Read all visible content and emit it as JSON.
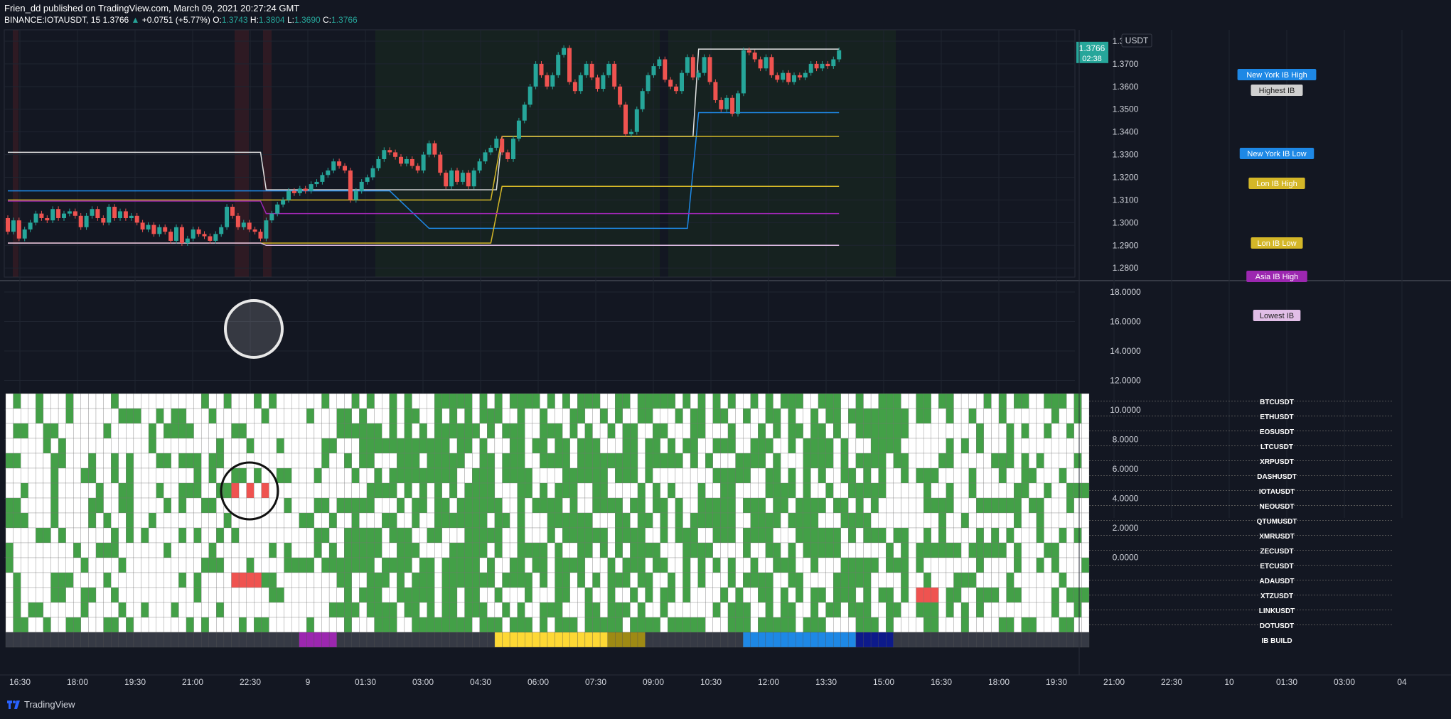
{
  "header": {
    "publisher": "Frien_dd published on TradingView.com, March 09, 2021 20:27:24 GMT",
    "symbol": "BINANCE:IOTAUSDT, 15",
    "last": "1.3766",
    "change_arrow": "▲",
    "change": "+0.0751 (+5.77%)",
    "o_label": "O:",
    "o": "1.3743",
    "h_label": "H:",
    "h": "1.3804",
    "l_label": "L:",
    "l": "1.3690",
    "c_label": "C:",
    "c": "1.3766"
  },
  "currency_label": "USDT",
  "price_axis": [
    "1.3800",
    "1.3700",
    "1.3600",
    "1.3500",
    "1.3400",
    "1.3300",
    "1.3200",
    "1.3100",
    "1.3000",
    "1.2900",
    "1.2800"
  ],
  "current_price": {
    "value": "1.3766",
    "countdown": "02:38"
  },
  "line_labels": [
    {
      "text": "New York IB High",
      "color": "#1e88e5"
    },
    {
      "text": "Highest IB",
      "color": "#d0d0d0"
    },
    {
      "text": "New York IB Low",
      "color": "#1e88e5"
    },
    {
      "text": "Lon IB High",
      "color": "#d4b728"
    },
    {
      "text": "Lon IB Low",
      "color": "#d4b728"
    },
    {
      "text": "Asia IB High",
      "color": "#9c27b0"
    },
    {
      "text": "Lowest IB",
      "color": "#e1bee7"
    }
  ],
  "indicator_axis": [
    "18.0000",
    "16.0000",
    "14.0000",
    "12.0000",
    "10.0000",
    "8.0000",
    "6.0000",
    "4.0000",
    "2.0000",
    "0.0000"
  ],
  "symbols": [
    "BTCUSDT",
    "ETHUSDT",
    "EOSUSDT",
    "LTCUSDT",
    "XRPUSDT",
    "DASHUSDT",
    "IOTAUSDT",
    "NEOUSDT",
    "QTUMUSDT",
    "XMRUSDT",
    "ZECUSDT",
    "ETCUSDT",
    "ADAUSDT",
    "XTZUSDT",
    "LINKUSDT",
    "DOTUSDT",
    "IB BUILD"
  ],
  "time_axis": [
    "16:30",
    "18:00",
    "19:30",
    "21:00",
    "22:30",
    "9",
    "01:30",
    "03:00",
    "04:30",
    "06:00",
    "07:30",
    "09:00",
    "10:30",
    "12:00",
    "13:30",
    "15:00",
    "16:30",
    "18:00",
    "19:30",
    "21:00",
    "22:30",
    "10",
    "01:30",
    "03:00",
    "04"
  ],
  "footer": {
    "brand": "TradingView"
  },
  "colors": {
    "background": "#131722",
    "up": "#26a69a",
    "down": "#ef5350",
    "heat_green": "#43a047",
    "heat_red": "#ef5350",
    "heat_white": "#ffffff",
    "ib_asia": "#9c27b0",
    "ib_london": "#fdd835",
    "ib_london_dark": "#9e8a14",
    "ib_newyork": "#1e88e5",
    "ib_newyork_dark": "#0d1a8a",
    "ib_none": "#363a45"
  },
  "chart_data": {
    "type": "candlestick",
    "symbol": "BINANCE:IOTAUSDT",
    "interval": "15",
    "ylim": [
      1.276,
      1.385
    ],
    "candles": [
      [
        1.302,
        1.296
      ],
      [
        1.296,
        1.301
      ],
      [
        1.301,
        1.293
      ],
      [
        1.293,
        1.297
      ],
      [
        1.297,
        1.3
      ],
      [
        1.3,
        1.304
      ],
      [
        1.304,
        1.302
      ],
      [
        1.302,
        1.301
      ],
      [
        1.301,
        1.306
      ],
      [
        1.306,
        1.302
      ],
      [
        1.302,
        1.304
      ],
      [
        1.304,
        1.305
      ],
      [
        1.305,
        1.303
      ],
      [
        1.303,
        1.298
      ],
      [
        1.298,
        1.303
      ],
      [
        1.303,
        1.306
      ],
      [
        1.306,
        1.302
      ],
      [
        1.302,
        1.3
      ],
      [
        1.3,
        1.307
      ],
      [
        1.307,
        1.302
      ],
      [
        1.302,
        1.305
      ],
      [
        1.305,
        1.302
      ],
      [
        1.302,
        1.303
      ],
      [
        1.303,
        1.3
      ],
      [
        1.3,
        1.297
      ],
      [
        1.297,
        1.299
      ],
      [
        1.299,
        1.295
      ],
      [
        1.295,
        1.298
      ],
      [
        1.298,
        1.296
      ],
      [
        1.296,
        1.292
      ],
      [
        1.292,
        1.298
      ],
      [
        1.298,
        1.291
      ],
      [
        1.291,
        1.293
      ],
      [
        1.293,
        1.297
      ],
      [
        1.297,
        1.295
      ],
      [
        1.295,
        1.294
      ],
      [
        1.294,
        1.292
      ],
      [
        1.292,
        1.295
      ],
      [
        1.295,
        1.298
      ],
      [
        1.298,
        1.307
      ],
      [
        1.307,
        1.303
      ],
      [
        1.303,
        1.298
      ],
      [
        1.298,
        1.3
      ],
      [
        1.3,
        1.297
      ],
      [
        1.297,
        1.296
      ],
      [
        1.296,
        1.293
      ],
      [
        1.293,
        1.301
      ],
      [
        1.301,
        1.304
      ],
      [
        1.304,
        1.308
      ],
      [
        1.308,
        1.31
      ],
      [
        1.31,
        1.314
      ],
      [
        1.314,
        1.313
      ],
      [
        1.313,
        1.315
      ],
      [
        1.315,
        1.314
      ],
      [
        1.314,
        1.317
      ],
      [
        1.317,
        1.318
      ],
      [
        1.318,
        1.321
      ],
      [
        1.321,
        1.323
      ],
      [
        1.323,
        1.327
      ],
      [
        1.327,
        1.325
      ],
      [
        1.325,
        1.323
      ],
      [
        1.323,
        1.31
      ],
      [
        1.31,
        1.314
      ],
      [
        1.314,
        1.318
      ],
      [
        1.318,
        1.32
      ],
      [
        1.32,
        1.324
      ],
      [
        1.324,
        1.328
      ],
      [
        1.328,
        1.332
      ],
      [
        1.332,
        1.331
      ],
      [
        1.331,
        1.329
      ],
      [
        1.329,
        1.326
      ],
      [
        1.326,
        1.328
      ],
      [
        1.328,
        1.325
      ],
      [
        1.325,
        1.323
      ],
      [
        1.323,
        1.33
      ],
      [
        1.33,
        1.335
      ],
      [
        1.335,
        1.33
      ],
      [
        1.33,
        1.322
      ],
      [
        1.322,
        1.316
      ],
      [
        1.316,
        1.323
      ],
      [
        1.323,
        1.318
      ],
      [
        1.318,
        1.322
      ],
      [
        1.322,
        1.316
      ],
      [
        1.316,
        1.323
      ],
      [
        1.323,
        1.327
      ],
      [
        1.327,
        1.331
      ],
      [
        1.331,
        1.333
      ],
      [
        1.333,
        1.337
      ],
      [
        1.337,
        1.331
      ],
      [
        1.331,
        1.328
      ],
      [
        1.328,
        1.337
      ],
      [
        1.337,
        1.345
      ],
      [
        1.345,
        1.352
      ],
      [
        1.352,
        1.36
      ],
      [
        1.36,
        1.37
      ],
      [
        1.37,
        1.365
      ],
      [
        1.365,
        1.36
      ],
      [
        1.36,
        1.365
      ],
      [
        1.365,
        1.374
      ],
      [
        1.374,
        1.377
      ],
      [
        1.377,
        1.362
      ],
      [
        1.362,
        1.358
      ],
      [
        1.358,
        1.365
      ],
      [
        1.365,
        1.37
      ],
      [
        1.37,
        1.364
      ],
      [
        1.364,
        1.359
      ],
      [
        1.359,
        1.365
      ],
      [
        1.365,
        1.37
      ],
      [
        1.37,
        1.36
      ],
      [
        1.36,
        1.352
      ],
      [
        1.352,
        1.339
      ],
      [
        1.339,
        1.34
      ],
      [
        1.34,
        1.35
      ],
      [
        1.35,
        1.358
      ],
      [
        1.358,
        1.365
      ],
      [
        1.365,
        1.369
      ],
      [
        1.369,
        1.372
      ],
      [
        1.372,
        1.363
      ],
      [
        1.363,
        1.36
      ],
      [
        1.36,
        1.358
      ],
      [
        1.358,
        1.366
      ],
      [
        1.366,
        1.373
      ],
      [
        1.373,
        1.364
      ],
      [
        1.364,
        1.366
      ],
      [
        1.366,
        1.373
      ],
      [
        1.373,
        1.362
      ],
      [
        1.362,
        1.354
      ],
      [
        1.354,
        1.35
      ],
      [
        1.35,
        1.355
      ],
      [
        1.355,
        1.348
      ],
      [
        1.348,
        1.357
      ],
      [
        1.357,
        1.376
      ],
      [
        1.376,
        1.375
      ],
      [
        1.375,
        1.372
      ],
      [
        1.372,
        1.368
      ],
      [
        1.368,
        1.373
      ],
      [
        1.373,
        1.365
      ],
      [
        1.365,
        1.363
      ],
      [
        1.363,
        1.366
      ],
      [
        1.366,
        1.362
      ],
      [
        1.362,
        1.365
      ],
      [
        1.365,
        1.364
      ],
      [
        1.364,
        1.366
      ],
      [
        1.366,
        1.37
      ],
      [
        1.37,
        1.368
      ],
      [
        1.368,
        1.37
      ],
      [
        1.37,
        1.369
      ],
      [
        1.369,
        1.372
      ],
      [
        1.372,
        1.376
      ]
    ],
    "horizontal_lines": [
      {
        "name": "New York IB High",
        "color": "#1e88e5",
        "segments": [
          [
            0,
            50,
            1.3145
          ],
          [
            50,
            101,
            1.3148
          ],
          [
            101,
            130,
            1.3485
          ],
          [
            130,
            142,
            1.3485
          ]
        ]
      },
      {
        "name": "Highest IB",
        "color": "#e0e0e0",
        "segments": [
          [
            0,
            48,
            1.3305
          ],
          [
            48,
            50,
            1.3145
          ],
          [
            50,
            80,
            1.3145
          ],
          [
            80,
            99,
            1.3145
          ],
          [
            99,
            126,
            1.338
          ],
          [
            126,
            130,
            1.3765
          ],
          [
            130,
            158,
            1.3765
          ]
        ]
      }
    ],
    "indicator": {
      "series": "symbol breadth grid",
      "ylim": [
        0,
        18
      ],
      "cell_states": [
        "white",
        "green",
        "red"
      ]
    }
  }
}
